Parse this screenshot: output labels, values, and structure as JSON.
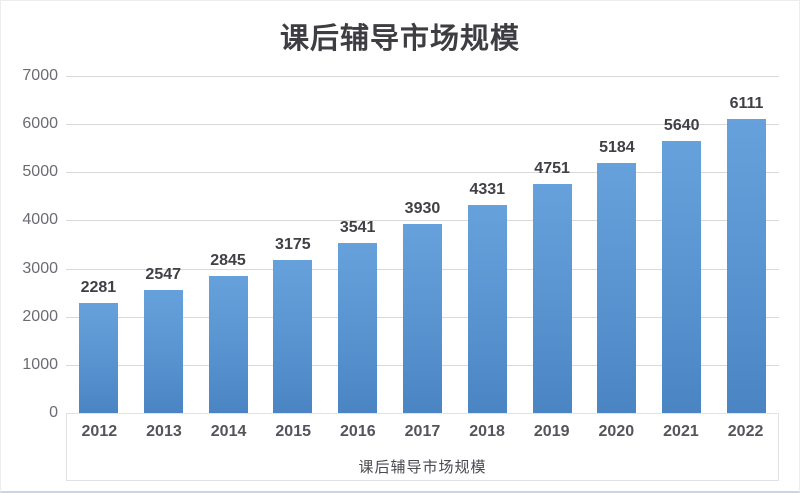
{
  "title": "课后辅导市场规模",
  "colors": {
    "bar_blue": "#5B9BD5",
    "gridline": "#d9d9d9",
    "title_text": "#3d3d42",
    "tick_text": "#6b6b74",
    "label_text": "#404046"
  },
  "chart_data": {
    "type": "bar",
    "title": "课后辅导市场规模",
    "categories": [
      "2012",
      "2013",
      "2014",
      "2015",
      "2016",
      "2017",
      "2018",
      "2019",
      "2020",
      "2021",
      "2022"
    ],
    "values": [
      2281,
      2547,
      2845,
      3175,
      3541,
      3930,
      4331,
      4751,
      5184,
      5640,
      6111
    ],
    "xlabel": "课后辅导市场规模",
    "ylabel": "",
    "ylim": [
      0,
      7000
    ],
    "yticks": [
      0,
      1000,
      2000,
      3000,
      4000,
      5000,
      6000,
      7000
    ],
    "grid": true,
    "legend_position": "none",
    "data_labels": true,
    "bar_color": "#5B9BD5"
  }
}
